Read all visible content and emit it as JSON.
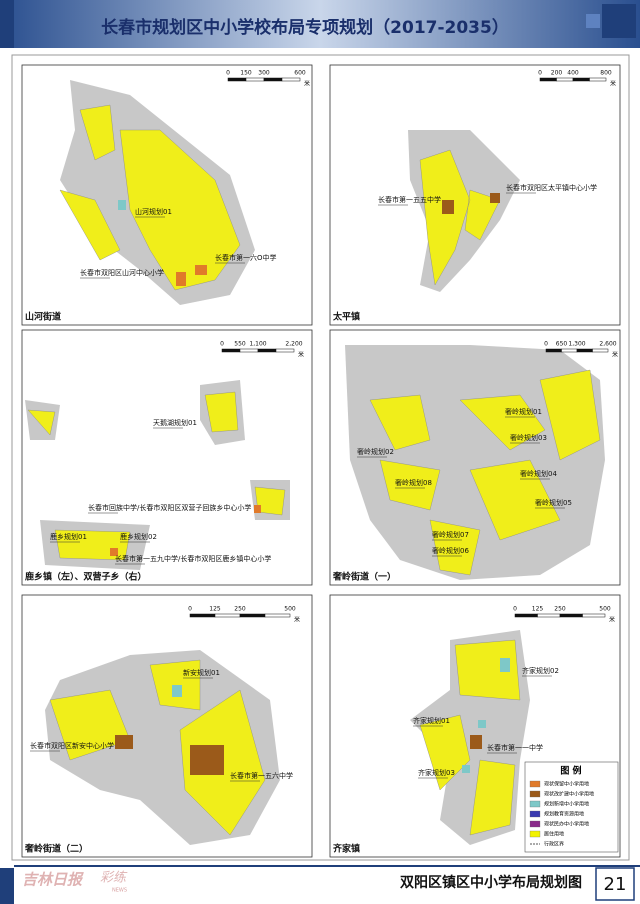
{
  "header": {
    "title": "长春市规划区中小学校布局专项规划（2017-2035）"
  },
  "panels": [
    {
      "title": "山河街道",
      "scale": [
        "0",
        "150",
        "300",
        "600"
      ],
      "unit": "米",
      "labels": [
        "山河规划01",
        "长春市第一六O中学",
        "长春市双阳区山河中心小学"
      ]
    },
    {
      "title": "太平镇",
      "scale": [
        "0",
        "200",
        "400",
        "800"
      ],
      "unit": "米",
      "labels": [
        "长春市第一五五中学",
        "长春市双阳区太平镇中心小学"
      ]
    },
    {
      "title": "鹿乡镇（左）、双营子乡（右）",
      "scale": [
        "0",
        "550",
        "1,100",
        "2,200"
      ],
      "unit": "米",
      "labels": [
        "天鹅湖规划01",
        "长春市回族中学/长春市双阳区双营子回族乡中心小学",
        "鹿乡规划01",
        "鹿乡规划02",
        "长春市第一五九中学/长春市双阳区鹿乡镇中心小学"
      ]
    },
    {
      "title": "奢岭街道（一）",
      "scale": [
        "0",
        "650",
        "1,300",
        "2,600"
      ],
      "unit": "米",
      "labels": [
        "奢岭规划01",
        "奢岭规划03",
        "奢岭规划02",
        "奢岭规划08",
        "奢岭规划04",
        "奢岭规划05",
        "奢岭规划07",
        "奢岭规划06"
      ]
    },
    {
      "title": "奢岭街道（二）",
      "scale": [
        "0",
        "125",
        "250",
        "500"
      ],
      "unit": "米",
      "labels": [
        "新安规划01",
        "长春市双阳区新安中心小学",
        "长春市第一五六中学"
      ]
    },
    {
      "title": "齐家镇",
      "scale": [
        "0",
        "125",
        "250",
        "500"
      ],
      "unit": "米",
      "labels": [
        "齐家规划02",
        "齐家规划01",
        "长春市第一一中学",
        "齐家规划03"
      ]
    }
  ],
  "legend": {
    "title": "图 例",
    "items": [
      "现状保留中小学用地",
      "现状改扩建中小学用地",
      "规划新增中小学用地",
      "规划教育资源用地",
      "现状民办中小学用地",
      "居住用地",
      "行政区界"
    ]
  },
  "footer": {
    "title": "双阳区镇区中小学布局规划图",
    "page": "21",
    "watermark": [
      "吉林日报",
      "彩练",
      "NEWS"
    ]
  }
}
